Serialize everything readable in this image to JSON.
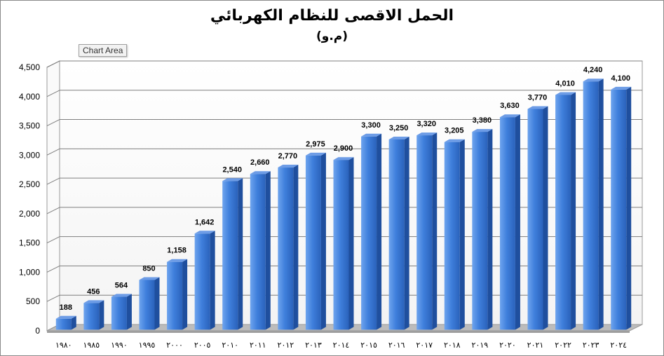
{
  "chart_data": {
    "type": "bar",
    "title": "الحمل الاقصى للنظام الكهربائي",
    "subtitle": "(م.و)",
    "categories": [
      "١٩٨٠",
      "١٩٨٥",
      "١٩٩٠",
      "١٩٩٥",
      "٢٠٠٠",
      "٢٠٠٥",
      "٢٠١٠",
      "٢٠١١",
      "٢٠١٢",
      "٢٠١٣",
      "٢٠١٤",
      "٢٠١٥",
      "٢٠١٦",
      "٢٠١٧",
      "٢٠١٨",
      "٢٠١٩",
      "٢٠٢٠",
      "٢٠٢١",
      "٢٠٢٢",
      "٢٠٢٣",
      "٢٠٢٤"
    ],
    "values": [
      188,
      456,
      564,
      850,
      1158,
      1642,
      2540,
      2660,
      2770,
      2975,
      2900,
      3300,
      3250,
      3320,
      3205,
      3380,
      3630,
      3770,
      4010,
      4240,
      4100
    ],
    "data_labels": [
      "188",
      "456",
      "564",
      "850",
      "1,158",
      "1,642",
      "2,540",
      "2,660",
      "2,770",
      "2,975",
      "2,900",
      "3,300",
      "3,250",
      "3,320",
      "3,205",
      "3,380",
      "3,630",
      "3,770",
      "4,010",
      "4,240",
      "4,100"
    ],
    "yticks": [
      "0",
      "500",
      "1,000",
      "1,500",
      "2,000",
      "2,500",
      "3,000",
      "3,500",
      "4,000",
      "4,500"
    ],
    "ylim": [
      0,
      4500
    ],
    "grid": true,
    "legend": "none",
    "bar_color": "#3a78d8",
    "style": "3d-column"
  },
  "tooltip": {
    "label": "Chart Area"
  }
}
